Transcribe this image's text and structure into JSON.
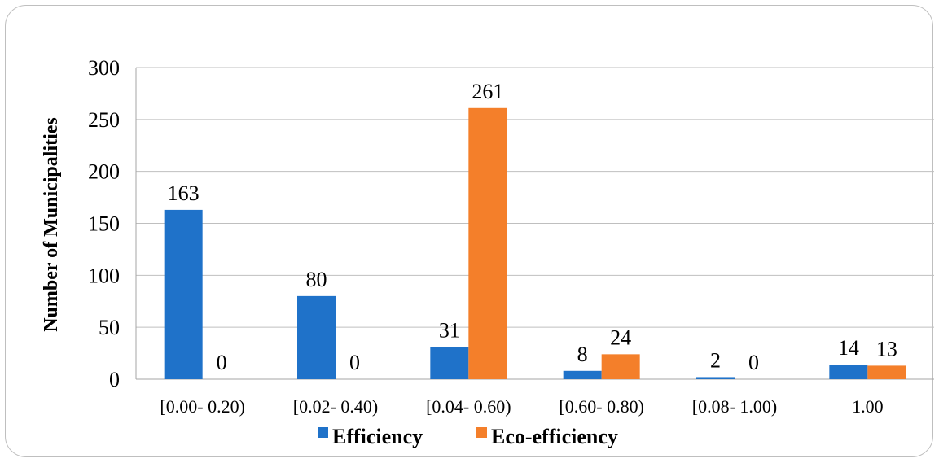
{
  "chart_data": {
    "type": "bar",
    "title": "",
    "xlabel": "",
    "ylabel": "Number of Municipalities",
    "ylim": [
      0,
      300
    ],
    "yticks": [
      0,
      50,
      100,
      150,
      200,
      250,
      300
    ],
    "grid": true,
    "legend_position": "bottom",
    "categories": [
      "[0.00- 0.20)",
      "[0.02- 0.40)",
      "[0.04- 0.60)",
      "[0.60- 0.80)",
      "[0.08- 1.00)",
      "1.00"
    ],
    "series": [
      {
        "name": "Efficiency",
        "color": "#1f72c9",
        "values": [
          163,
          80,
          31,
          8,
          2,
          14
        ]
      },
      {
        "name": "Eco-efficiency",
        "color": "#f47f2a",
        "values": [
          0,
          0,
          261,
          24,
          0,
          13
        ]
      }
    ]
  }
}
